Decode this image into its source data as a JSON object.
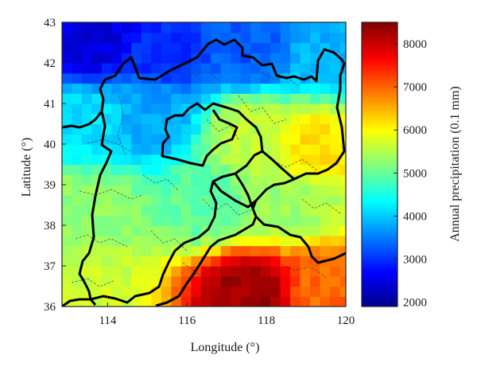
{
  "chart_data": {
    "type": "heatmap",
    "xlabel": "Longitude (°)",
    "ylabel": "Latitude (°)",
    "xlim": [
      112.85,
      120
    ],
    "ylim": [
      36,
      43
    ],
    "xticks": [
      "114",
      "116",
      "118",
      "120"
    ],
    "yticks": [
      "36",
      "37",
      "38",
      "39",
      "40",
      "41",
      "42",
      "43"
    ],
    "colorbar": {
      "label": "Annual precipitation (0.1 mm)",
      "range": [
        1900,
        8500
      ],
      "ticks": [
        "2000",
        "3000",
        "4000",
        "5000",
        "6000",
        "7000",
        "8000"
      ],
      "colormap": "jet"
    },
    "grid_resolution_deg": 0.25,
    "field_samples": [
      {
        "lon": 113.5,
        "lat": 42.6,
        "value": 2500
      },
      {
        "lon": 115.5,
        "lat": 42.3,
        "value": 3000
      },
      {
        "lon": 117.5,
        "lat": 42.3,
        "value": 3300
      },
      {
        "lon": 119.5,
        "lat": 42.2,
        "value": 3900
      },
      {
        "lon": 113.5,
        "lat": 40.5,
        "value": 4200
      },
      {
        "lon": 115.2,
        "lat": 40.6,
        "value": 3800
      },
      {
        "lon": 117.5,
        "lat": 40.3,
        "value": 5600
      },
      {
        "lon": 119.2,
        "lat": 40.0,
        "value": 6200
      },
      {
        "lon": 113.5,
        "lat": 38.5,
        "value": 5300
      },
      {
        "lon": 116.5,
        "lat": 38.5,
        "value": 5000
      },
      {
        "lon": 118.5,
        "lat": 38.5,
        "value": 5400
      },
      {
        "lon": 113.5,
        "lat": 36.5,
        "value": 5700
      },
      {
        "lon": 117.6,
        "lat": 36.4,
        "value": 8300
      },
      {
        "lon": 119.5,
        "lat": 36.5,
        "value": 7000
      }
    ],
    "colors": {
      "dark_blue": "#00008f",
      "blue": "#0040ff",
      "cyan": "#00e0ff",
      "yellow": "#ffff00",
      "orange": "#ff8000",
      "red": "#e00000",
      "dark_red": "#800000",
      "border": "#000000",
      "minor_border": "#333333"
    }
  }
}
